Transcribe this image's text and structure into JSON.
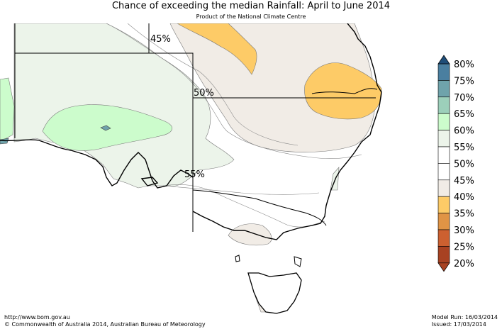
{
  "header": {
    "title": "Chance of exceeding the median Rainfall: April to June 2014",
    "subtitle": "Product of the National Climate Centre"
  },
  "map": {
    "contour_labels": [
      "45%",
      "50%",
      "55%"
    ]
  },
  "legend": {
    "items": [
      {
        "label": "80%",
        "color": "#1f4e79"
      },
      {
        "label": "75%",
        "color": "#4a7fa0"
      },
      {
        "label": "70%",
        "color": "#6fa3ab"
      },
      {
        "label": "65%",
        "color": "#9ccfba"
      },
      {
        "label": "60%",
        "color": "#ccfccc"
      },
      {
        "label": "55%",
        "color": "#ecf4ea"
      },
      {
        "label": "50%",
        "color": "#ffffff"
      },
      {
        "label": "45%",
        "color": "#ffffff"
      },
      {
        "label": "40%",
        "color": "#f1ece6"
      },
      {
        "label": "35%",
        "color": "#fdcb67"
      },
      {
        "label": "30%",
        "color": "#e09445"
      },
      {
        "label": "25%",
        "color": "#cc6030"
      },
      {
        "label": "20%",
        "color": "#a84222"
      }
    ]
  },
  "footer": {
    "url": "http://www.bom.gov.au",
    "copyright": "©  Commonwealth of Australia 2014, Australian Bureau of Meteorology",
    "model_run": "Model Run: 16/03/2014",
    "issued": "Issued: 17/03/2014"
  }
}
